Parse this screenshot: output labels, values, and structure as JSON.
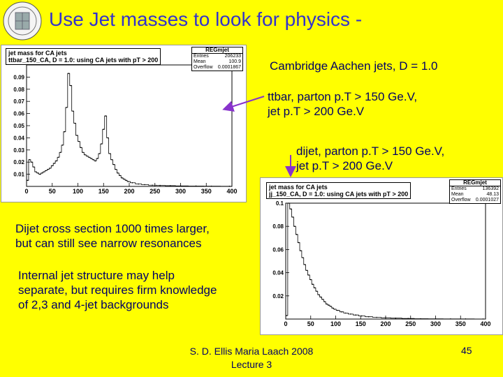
{
  "title": "Use Jet masses to look for physics -",
  "annotations": {
    "algorithm": "Cambridge Aachen jets, D = 1.0",
    "ttbar_line1": "ttbar, parton p.T > 150 Ge.V,",
    "ttbar_line2": "jet p.T > 200 Ge.V",
    "dijet_line1": "dijet, parton p.T > 150 Ge.V,",
    "dijet_line2": "jet p.T > 200 Ge.V"
  },
  "bullets": {
    "b1_line1": "Dijet cross section 1000 times larger,",
    "b1_line2": "but can still see narrow resonances",
    "b2_line1": "Internal jet structure may help",
    "b2_line2": "separate, but requires firm knowledge",
    "b2_line3": "of 2,3 and 4-jet backgrounds"
  },
  "footer": {
    "line1": "S. D. Ellis   Maria Laach 2008",
    "line2": "Lecture 3",
    "page": "45"
  },
  "colors": {
    "background": "#ffff00",
    "title": "#3333cc",
    "text": "#000066",
    "arrow": "#8833cc"
  },
  "chart_data": [
    {
      "type": "bar",
      "title_line1": "jet mass for CA jets",
      "title_line2": "ttbar_150_CA, D = 1.0: using CA jets with pT > 200",
      "stats": {
        "name": "REGmjet",
        "entries_label": "Entries",
        "entries": "206233",
        "mean_label": "Mean",
        "mean": "100.9",
        "overflow_label": "Overflow",
        "overflow": "0.0001867"
      },
      "xlim": [
        0,
        400
      ],
      "ylim": [
        0,
        0.1
      ],
      "x_ticks": [
        "0",
        "50",
        "100",
        "150",
        "200",
        "250",
        "300",
        "350",
        "400"
      ],
      "y_ticks": [
        "0.01",
        "0.02",
        "0.03",
        "0.04",
        "0.05",
        "0.06",
        "0.07",
        "0.08",
        "0.09"
      ],
      "x": [
        2,
        6,
        10,
        14,
        18,
        22,
        26,
        30,
        34,
        38,
        42,
        46,
        50,
        54,
        58,
        62,
        66,
        70,
        74,
        78,
        82,
        86,
        90,
        94,
        98,
        102,
        106,
        110,
        114,
        118,
        122,
        126,
        130,
        134,
        138,
        142,
        146,
        150,
        154,
        158,
        162,
        166,
        170,
        174,
        178,
        182,
        186,
        190,
        194,
        198,
        206,
        218,
        230,
        245,
        260,
        280,
        300,
        330,
        360,
        395
      ],
      "values": [
        0.005,
        0.022,
        0.02,
        0.016,
        0.012,
        0.011,
        0.01,
        0.011,
        0.012,
        0.013,
        0.014,
        0.015,
        0.017,
        0.019,
        0.021,
        0.024,
        0.028,
        0.034,
        0.045,
        0.065,
        0.093,
        0.083,
        0.062,
        0.052,
        0.042,
        0.037,
        0.032,
        0.028,
        0.026,
        0.025,
        0.024,
        0.023,
        0.022,
        0.021,
        0.023,
        0.027,
        0.035,
        0.047,
        0.058,
        0.04,
        0.027,
        0.022,
        0.018,
        0.014,
        0.011,
        0.009,
        0.007,
        0.006,
        0.005,
        0.004,
        0.003,
        0.002,
        0.0015,
        0.001,
        0.0008,
        0.0006,
        0.0004,
        0.0003,
        0.0002,
        0.0001
      ]
    },
    {
      "type": "bar",
      "title_line1": "jet mass for CA jets",
      "title_line2": "jj_150_CA, D = 1.0: using CA jets with pT > 200",
      "stats": {
        "name": "REGmjet",
        "entries_label": "Entries",
        "entries": "136392",
        "mean_label": "Mean",
        "mean": "48.13",
        "overflow_label": "Overflow",
        "overflow": "0.0001027"
      },
      "xlim": [
        0,
        400
      ],
      "ylim": [
        0,
        0.1
      ],
      "x_ticks": [
        "0",
        "50",
        "100",
        "150",
        "200",
        "250",
        "300",
        "350",
        "400"
      ],
      "y_ticks": [
        "0.02",
        "0.04",
        "0.06",
        "0.08",
        "0.1"
      ],
      "x": [
        2,
        6,
        10,
        14,
        18,
        22,
        26,
        30,
        34,
        38,
        42,
        46,
        50,
        54,
        58,
        62,
        66,
        70,
        74,
        78,
        82,
        86,
        90,
        94,
        98,
        104,
        112,
        120,
        130,
        140,
        152,
        166,
        182,
        200,
        220,
        245,
        270,
        300,
        330,
        360,
        395
      ],
      "values": [
        0.003,
        0.1,
        0.095,
        0.088,
        0.08,
        0.073,
        0.066,
        0.059,
        0.053,
        0.047,
        0.042,
        0.038,
        0.034,
        0.03,
        0.027,
        0.024,
        0.021,
        0.019,
        0.017,
        0.015,
        0.013,
        0.012,
        0.011,
        0.0095,
        0.0085,
        0.0075,
        0.0062,
        0.0052,
        0.0043,
        0.0035,
        0.0027,
        0.002,
        0.0015,
        0.0011,
        0.0008,
        0.0005,
        0.0003,
        0.0002,
        0.00015,
        0.0001,
        8e-05
      ]
    }
  ]
}
